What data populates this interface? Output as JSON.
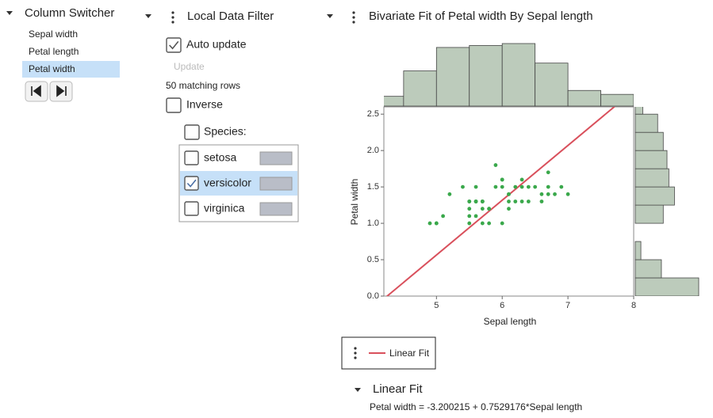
{
  "column_switcher": {
    "title": "Column Switcher",
    "columns": [
      "Sepal width",
      "Petal length",
      "Petal width"
    ],
    "selected": 2
  },
  "data_filter": {
    "title": "Local Data Filter",
    "auto_update": {
      "label": "Auto update",
      "checked": true
    },
    "update_button": "Update",
    "matching_rows": "50 matching rows",
    "inverse": {
      "label": "Inverse",
      "checked": false
    },
    "column": {
      "label": "Species:",
      "checked": false
    },
    "levels": [
      {
        "name": "setosa",
        "selected": false
      },
      {
        "name": "versicolor",
        "selected": true
      },
      {
        "name": "virginica",
        "selected": false
      }
    ],
    "swatch_color": "#b9bdc7"
  },
  "chart_data": {
    "type": "scatter",
    "title": "Bivariate Fit of Petal width By Sepal length",
    "x_label": "Sepal length",
    "y_label": "Petal width",
    "xlim": [
      4.2,
      8
    ],
    "ylim": [
      0,
      2.6
    ],
    "xticks": [
      5,
      6,
      7,
      8
    ],
    "yticks": [
      {
        "value": 0,
        "label": "0.0"
      },
      {
        "value": 0.5,
        "label": "0.5"
      },
      {
        "value": 1,
        "label": "1.0"
      },
      {
        "value": 1.5,
        "label": "1.5"
      },
      {
        "value": 2,
        "label": "2.0"
      },
      {
        "value": 2.5,
        "label": "2.5"
      }
    ],
    "color": "#3aa84b",
    "x": [
      7.0,
      6.4,
      6.9,
      5.5,
      6.5,
      5.7,
      6.3,
      4.9,
      6.6,
      5.2,
      5.0,
      5.9,
      6.0,
      6.1,
      5.6,
      6.7,
      5.6,
      5.8,
      6.2,
      5.6,
      5.9,
      6.1,
      6.3,
      6.1,
      6.4,
      6.6,
      6.8,
      6.7,
      6.0,
      5.7,
      5.5,
      5.5,
      5.8,
      6.0,
      5.4,
      6.0,
      6.7,
      6.3,
      5.6,
      5.5,
      5.5,
      6.1,
      5.8,
      5.0,
      5.6,
      5.7,
      5.7,
      6.2,
      5.1,
      5.7
    ],
    "values": [
      1.4,
      1.5,
      1.5,
      1.3,
      1.5,
      1.3,
      1.6,
      1.0,
      1.3,
      1.4,
      1.0,
      1.5,
      1.0,
      1.4,
      1.3,
      1.4,
      1.5,
      1.0,
      1.5,
      1.1,
      1.8,
      1.3,
      1.5,
      1.2,
      1.3,
      1.4,
      1.4,
      1.7,
      1.5,
      1.0,
      1.1,
      1.0,
      1.2,
      1.6,
      1.5,
      1.6,
      1.5,
      1.3,
      1.3,
      1.3,
      1.2,
      1.4,
      1.2,
      1.0,
      1.3,
      1.2,
      1.3,
      1.3,
      1.1,
      1.3
    ],
    "fit": {
      "name": "Linear Fit",
      "color": "#d9505c",
      "intercept": -3.200215,
      "slope": 0.7529176
    },
    "x_histogram": {
      "bins": [
        4,
        4.5,
        5,
        5.5,
        6,
        6.5,
        7,
        7.5,
        8
      ],
      "counts": [
        5,
        18,
        30,
        31,
        32,
        22,
        8,
        6
      ],
      "color": "#bccbbb"
    },
    "y_histogram": {
      "bins": [
        0,
        0.25,
        0.5,
        0.75,
        1,
        1.25,
        1.5,
        1.75,
        2,
        2.25,
        2.5,
        2.75
      ],
      "counts": [
        34,
        14,
        3,
        0,
        15,
        21,
        18,
        17,
        15,
        12,
        4
      ],
      "color": "#bccbbb"
    }
  },
  "fit_report": {
    "title": "Linear Fit",
    "equation": "Petal width = -3.200215 + 0.7529176*Sepal length"
  }
}
